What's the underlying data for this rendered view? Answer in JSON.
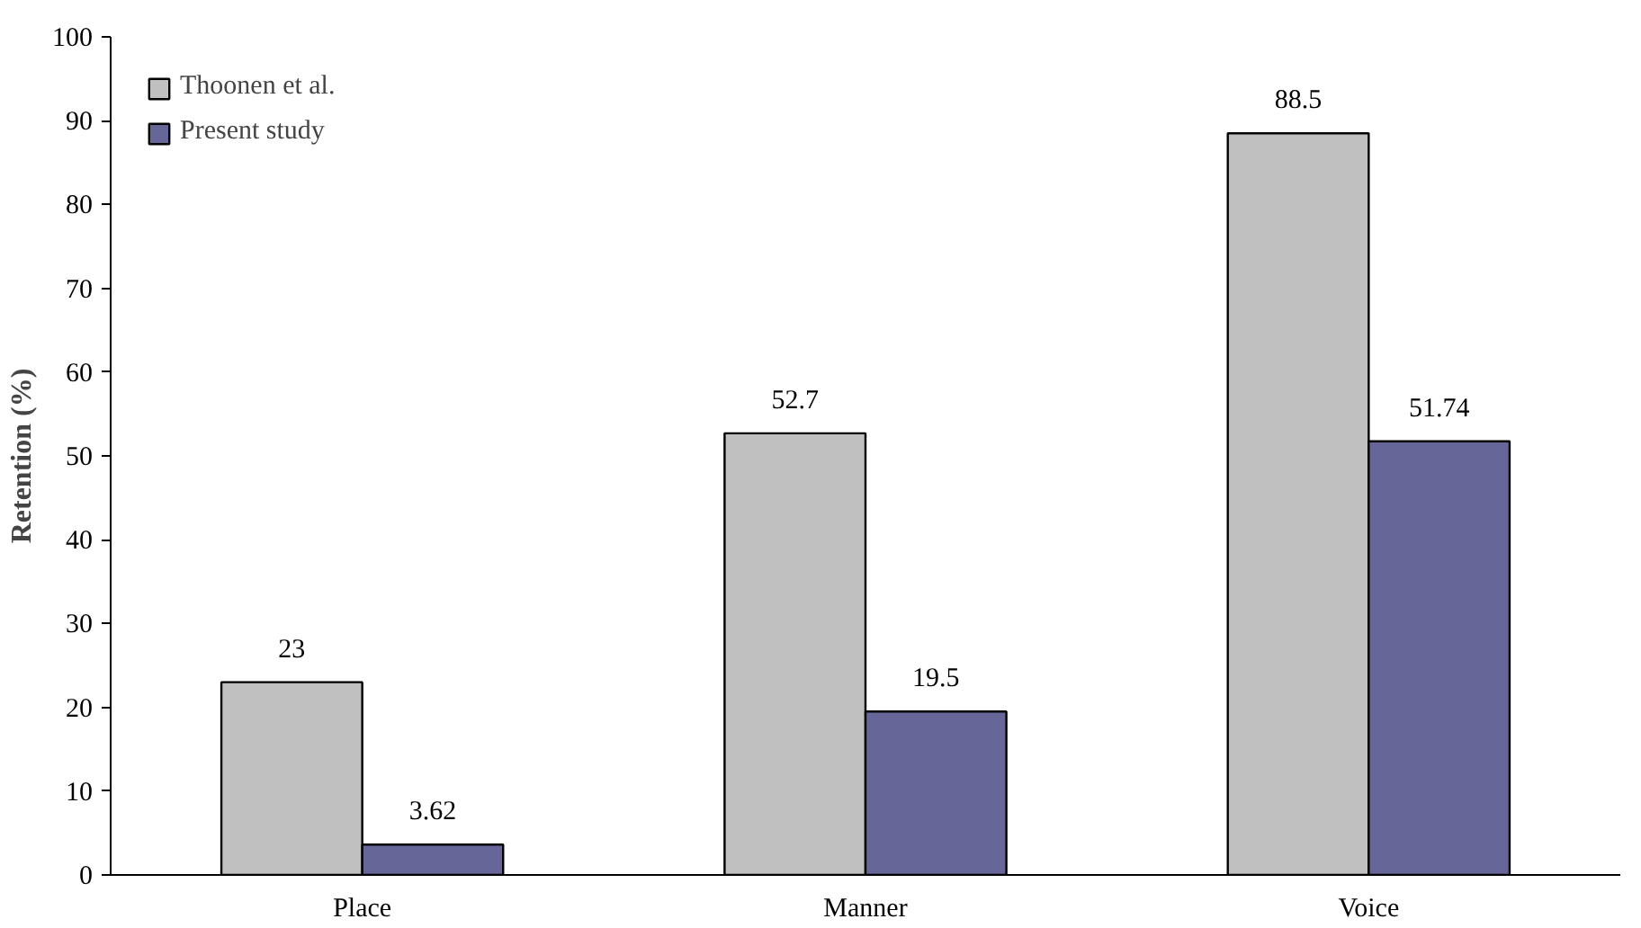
{
  "chart_data": {
    "type": "bar",
    "ylabel": "Retention (%)",
    "categories": [
      "Place",
      "Manner",
      "Voice"
    ],
    "series": [
      {
        "name": "Thoonen et al.",
        "color": "#c0c0c0",
        "values": [
          23,
          52.7,
          88.5
        ]
      },
      {
        "name": "Present study",
        "color": "#666699",
        "values": [
          3.62,
          19.5,
          51.74
        ]
      }
    ],
    "ylim": [
      0,
      100
    ],
    "yticks": [
      0,
      10,
      20,
      30,
      40,
      50,
      60,
      70,
      80,
      90,
      100
    ],
    "grid": false,
    "legend": "top left",
    "data_labels": true
  }
}
